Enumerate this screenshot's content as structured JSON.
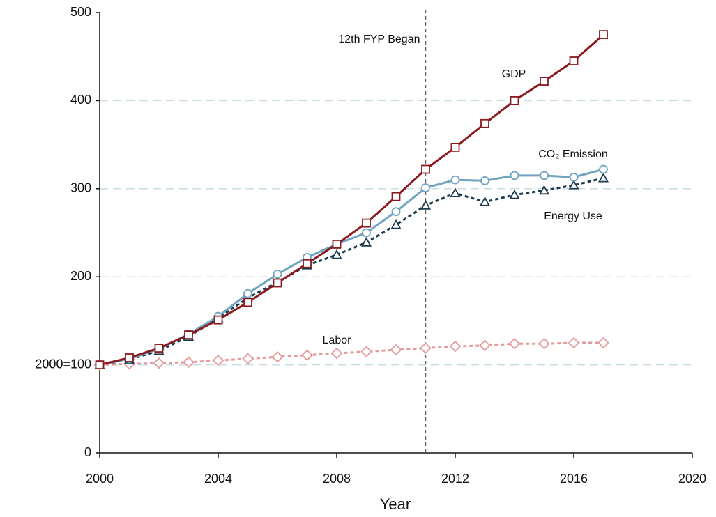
{
  "chart_data": {
    "type": "line",
    "x_label": "Year",
    "x": [
      2000,
      2001,
      2002,
      2003,
      2004,
      2005,
      2006,
      2007,
      2008,
      2009,
      2010,
      2011,
      2012,
      2013,
      2014,
      2015,
      2016,
      2017
    ],
    "series": [
      {
        "name": "GDP",
        "color": "#8b1a1e",
        "marker": "square",
        "line_style": "solid",
        "values": [
          100,
          108,
          119,
          134,
          151,
          171,
          193,
          215,
          237,
          261,
          291,
          322,
          347,
          374,
          400,
          422,
          445,
          475
        ]
      },
      {
        "name": "CO₂ Emission",
        "color": "#6fa3c2",
        "marker": "circle",
        "line_style": "solid",
        "values": [
          100,
          107,
          118,
          135,
          155,
          181,
          203,
          222,
          237,
          250,
          274,
          301,
          310,
          309,
          315,
          315,
          313,
          322
        ]
      },
      {
        "name": "Energy Use",
        "color": "#1c3a4e",
        "marker": "triangle",
        "line_style": "dashed",
        "values": [
          100,
          106,
          116,
          132,
          153,
          176,
          194,
          213,
          225,
          239,
          259,
          281,
          295,
          285,
          293,
          298,
          304,
          312
        ]
      },
      {
        "name": "Labor",
        "color": "#e59a9a",
        "marker": "diamond",
        "line_style": "dashed",
        "values": [
          100,
          101,
          102,
          103,
          105,
          107,
          109,
          111,
          113,
          115,
          117,
          119,
          121,
          122,
          124,
          124,
          125,
          125
        ]
      }
    ],
    "annotations": [
      {
        "text": "12th FYP Began",
        "x": 2011
      }
    ],
    "xlim": [
      2000,
      2020
    ],
    "xticks": [
      2000,
      2004,
      2008,
      2012,
      2016,
      2020
    ],
    "ylim": [
      0,
      500
    ],
    "yticks": [
      0,
      {
        "value": 100,
        "label": "2000=100"
      },
      200,
      300,
      400,
      500
    ],
    "grid": true
  }
}
